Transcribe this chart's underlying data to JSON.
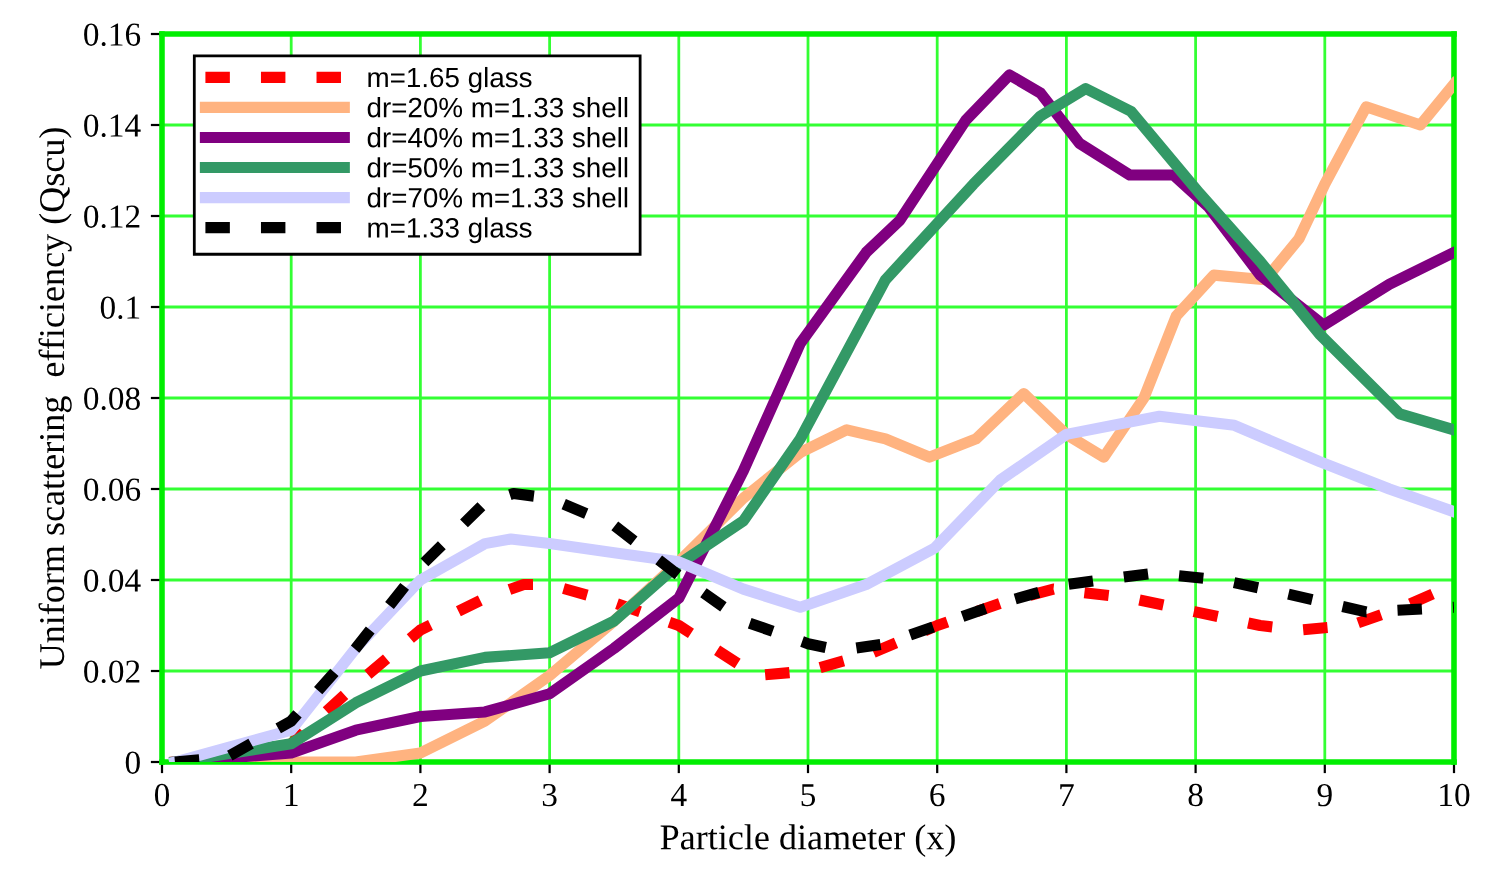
{
  "chart_data": {
    "type": "line",
    "xlabel": "Particle diameter (x)",
    "ylabel": "Uniform scattering  efficiency (Qscu)",
    "xlim": [
      0,
      10
    ],
    "ylim": [
      0,
      0.16
    ],
    "xticks": [
      0,
      1,
      2,
      3,
      4,
      5,
      6,
      7,
      8,
      9,
      10
    ],
    "yticks": [
      0,
      0.02,
      0.04,
      0.06,
      0.08,
      0.1,
      0.12,
      0.14,
      0.16
    ],
    "grid": true,
    "legend": "top left",
    "marker": "none",
    "series": [
      {
        "name": "m=1.65 glass",
        "color": "#ff0000",
        "line_style": "dashed",
        "x": [
          0.1,
          0.5,
          1,
          1.5,
          2,
          2.5,
          2.8,
          3,
          3.5,
          4,
          4.6,
          5,
          5.5,
          6,
          6.5,
          6.9,
          7.5,
          8,
          8.5,
          8.8,
          9.2,
          9.6,
          10
        ],
        "values": [
          0,
          0,
          0.004,
          0.017,
          0.029,
          0.036,
          0.039,
          0.039,
          0.035,
          0.03,
          0.019,
          0.02,
          0.024,
          0.03,
          0.035,
          0.038,
          0.036,
          0.033,
          0.03,
          0.029,
          0.03,
          0.034,
          0.039
        ]
      },
      {
        "name": "dr=20% m=1.33 shell",
        "color": "#ffb380",
        "line_style": "solid",
        "x": [
          0.1,
          1,
          1.5,
          2,
          2.5,
          3,
          3.5,
          4,
          4.5,
          4.94,
          5.3,
          5.6,
          5.94,
          6.3,
          6.67,
          7,
          7.29,
          7.6,
          7.85,
          8.14,
          8.54,
          8.8,
          9.0,
          9.32,
          9.74,
          10
        ],
        "values": [
          0,
          0,
          0,
          0.002,
          0.009,
          0.019,
          0.031,
          0.044,
          0.058,
          0.068,
          0.073,
          0.071,
          0.067,
          0.071,
          0.081,
          0.072,
          0.067,
          0.08,
          0.098,
          0.107,
          0.106,
          0.115,
          0.127,
          0.144,
          0.14,
          0.149
        ]
      },
      {
        "name": "dr=40% m=1.33 shell",
        "color": "#800080",
        "line_style": "solid",
        "x": [
          0.1,
          1,
          1.5,
          2,
          2.5,
          3,
          3.5,
          4,
          4.5,
          4.94,
          5.45,
          5.71,
          6.22,
          6.56,
          6.8,
          7.1,
          7.49,
          7.83,
          8.1,
          8.5,
          8.99,
          9.5,
          10
        ],
        "values": [
          0,
          0.002,
          0.007,
          0.01,
          0.011,
          0.015,
          0.025,
          0.036,
          0.064,
          0.092,
          0.112,
          0.119,
          0.141,
          0.151,
          0.147,
          0.136,
          0.129,
          0.129,
          0.122,
          0.107,
          0.096,
          0.105,
          0.112
        ]
      },
      {
        "name": "dr=50% m=1.33 shell",
        "color": "#339966",
        "line_style": "solid",
        "x": [
          0.1,
          1,
          1.5,
          2,
          2.5,
          3,
          3.5,
          4,
          4.5,
          4.94,
          5.6,
          6.28,
          6.8,
          7.15,
          7.5,
          8.03,
          8.5,
          8.96,
          9.58,
          10
        ],
        "values": [
          0,
          0.004,
          0.013,
          0.02,
          0.023,
          0.024,
          0.031,
          0.0435,
          0.053,
          0.071,
          0.106,
          0.127,
          0.142,
          0.148,
          0.143,
          0.125,
          0.11,
          0.094,
          0.0765,
          0.073
        ]
      },
      {
        "name": "dr=70% m=1.33 shell",
        "color": "#ccccff",
        "line_style": "solid",
        "x": [
          0.1,
          1,
          1.5,
          2,
          2.5,
          2.7,
          3,
          3.5,
          4,
          4.5,
          4.94,
          5.45,
          5.98,
          6.49,
          7.0,
          7.72,
          8.3,
          8.96,
          9.5,
          10
        ],
        "values": [
          0,
          0.007,
          0.025,
          0.04,
          0.048,
          0.049,
          0.048,
          0.046,
          0.044,
          0.038,
          0.034,
          0.039,
          0.047,
          0.062,
          0.072,
          0.076,
          0.074,
          0.066,
          0.06,
          0.055
        ]
      },
      {
        "name": "m=1.33 glass",
        "color": "#000000",
        "line_style": "dashed",
        "x": [
          0.1,
          0.5,
          1,
          1.5,
          2,
          2.5,
          2.72,
          3,
          3.5,
          4,
          4.5,
          5,
          5.25,
          5.6,
          6,
          6.5,
          7,
          7.68,
          8.2,
          8.7,
          9.32,
          10
        ],
        "values": [
          0,
          0.001,
          0.009,
          0.025,
          0.043,
          0.057,
          0.059,
          0.058,
          0.052,
          0.041,
          0.031,
          0.026,
          0.0245,
          0.026,
          0.03,
          0.035,
          0.039,
          0.0415,
          0.04,
          0.037,
          0.033,
          0.034
        ]
      }
    ]
  }
}
